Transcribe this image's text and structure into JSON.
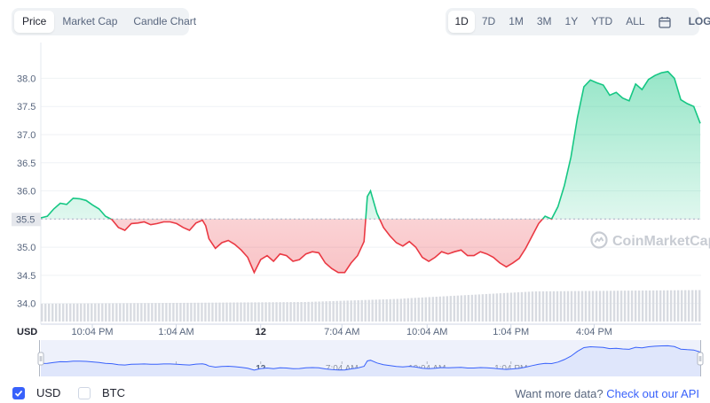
{
  "view_tabs": [
    {
      "label": "Price",
      "active": true
    },
    {
      "label": "Market Cap",
      "active": false
    },
    {
      "label": "Candle Chart",
      "active": false
    }
  ],
  "range_tabs": [
    {
      "label": "1D",
      "active": true
    },
    {
      "label": "7D",
      "active": false
    },
    {
      "label": "1M",
      "active": false
    },
    {
      "label": "3M",
      "active": false
    },
    {
      "label": "1Y",
      "active": false
    },
    {
      "label": "YTD",
      "active": false
    },
    {
      "label": "ALL",
      "active": false
    }
  ],
  "calendar_icon": "calendar-icon",
  "log_label": "LOG",
  "watermark": "CoinMarketCap",
  "currency_axis_label": "USD",
  "colors": {
    "up": "#16c784",
    "down": "#ea3943",
    "accent": "#3861fb",
    "volume": "#d1d5db",
    "nav_fill": "#dfe6fb"
  },
  "toggles": [
    {
      "label": "USD",
      "checked": true
    },
    {
      "label": "BTC",
      "checked": false
    }
  ],
  "more_data": {
    "question": "Want more data?",
    "link": "Check out our API"
  },
  "chart_data": {
    "type": "area",
    "title": "",
    "xlabel": "",
    "ylabel": "USD",
    "ylim": [
      33.9,
      38.4
    ],
    "y_ticks": [
      "38.0",
      "37.5",
      "37.0",
      "36.5",
      "36.0",
      "35.5",
      "35.0",
      "34.5",
      "34.0"
    ],
    "x_ticks": [
      "10:04 PM",
      "1:04 AM",
      "12",
      "7:04 AM",
      "10:04 AM",
      "1:04 PM",
      "4:04 PM"
    ],
    "baseline": 35.5,
    "baseline_label": "35.5",
    "x_range": [
      0,
      100
    ],
    "series": [
      {
        "values": [
          [
            0,
            35.52
          ],
          [
            1,
            35.55
          ],
          [
            2,
            35.68
          ],
          [
            3,
            35.78
          ],
          [
            4,
            35.76
          ],
          [
            5,
            35.87
          ],
          [
            6,
            35.86
          ],
          [
            7,
            35.83
          ],
          [
            8,
            35.75
          ],
          [
            9,
            35.68
          ],
          [
            10,
            35.55
          ],
          [
            11,
            35.49
          ],
          [
            12,
            35.35
          ],
          [
            13,
            35.3
          ],
          [
            14,
            35.42
          ],
          [
            15,
            35.43
          ],
          [
            16,
            35.45
          ],
          [
            17,
            35.4
          ],
          [
            18,
            35.42
          ],
          [
            19,
            35.45
          ],
          [
            20,
            35.45
          ],
          [
            21,
            35.42
          ],
          [
            22,
            35.35
          ],
          [
            23,
            35.3
          ],
          [
            24,
            35.43
          ],
          [
            25,
            35.48
          ],
          [
            25.5,
            35.38
          ],
          [
            26,
            35.15
          ],
          [
            27,
            34.98
          ],
          [
            28,
            35.08
          ],
          [
            29,
            35.12
          ],
          [
            30,
            35.05
          ],
          [
            31,
            34.95
          ],
          [
            32,
            34.82
          ],
          [
            33,
            34.55
          ],
          [
            34,
            34.78
          ],
          [
            35,
            34.85
          ],
          [
            36,
            34.75
          ],
          [
            37,
            34.88
          ],
          [
            38,
            34.85
          ],
          [
            39,
            34.75
          ],
          [
            40,
            34.78
          ],
          [
            41,
            34.88
          ],
          [
            42,
            34.92
          ],
          [
            43,
            34.9
          ],
          [
            44,
            34.72
          ],
          [
            45,
            34.62
          ],
          [
            46,
            34.55
          ],
          [
            47,
            34.55
          ],
          [
            48,
            34.72
          ],
          [
            49,
            34.85
          ],
          [
            50,
            35.1
          ],
          [
            50.5,
            35.9
          ],
          [
            51,
            36.0
          ],
          [
            52,
            35.6
          ],
          [
            53,
            35.35
          ],
          [
            54,
            35.2
          ],
          [
            55,
            35.08
          ],
          [
            56,
            35.02
          ],
          [
            57,
            35.1
          ],
          [
            58,
            35.0
          ],
          [
            59,
            34.82
          ],
          [
            60,
            34.75
          ],
          [
            61,
            34.82
          ],
          [
            62,
            34.92
          ],
          [
            63,
            34.88
          ],
          [
            64,
            34.92
          ],
          [
            65,
            34.95
          ],
          [
            66,
            34.85
          ],
          [
            67,
            34.85
          ],
          [
            68,
            34.92
          ],
          [
            69,
            34.88
          ],
          [
            70,
            34.82
          ],
          [
            71,
            34.72
          ],
          [
            72,
            34.65
          ],
          [
            73,
            34.72
          ],
          [
            74,
            34.8
          ],
          [
            75,
            34.98
          ],
          [
            76,
            35.2
          ],
          [
            77,
            35.42
          ],
          [
            78,
            35.55
          ],
          [
            79,
            35.5
          ],
          [
            80,
            35.72
          ],
          [
            81,
            36.1
          ],
          [
            82,
            36.6
          ],
          [
            83,
            37.3
          ],
          [
            84,
            37.85
          ],
          [
            85,
            37.97
          ],
          [
            86,
            37.92
          ],
          [
            87,
            37.88
          ],
          [
            88,
            37.7
          ],
          [
            89,
            37.75
          ],
          [
            90,
            37.65
          ],
          [
            91,
            37.6
          ],
          [
            92,
            37.9
          ],
          [
            93,
            37.8
          ],
          [
            94,
            37.98
          ],
          [
            95,
            38.05
          ],
          [
            96,
            38.1
          ],
          [
            97,
            38.12
          ],
          [
            98,
            38.0
          ],
          [
            99,
            37.62
          ],
          [
            100,
            37.55
          ],
          [
            101,
            37.5
          ],
          [
            102,
            37.2
          ]
        ]
      }
    ]
  }
}
